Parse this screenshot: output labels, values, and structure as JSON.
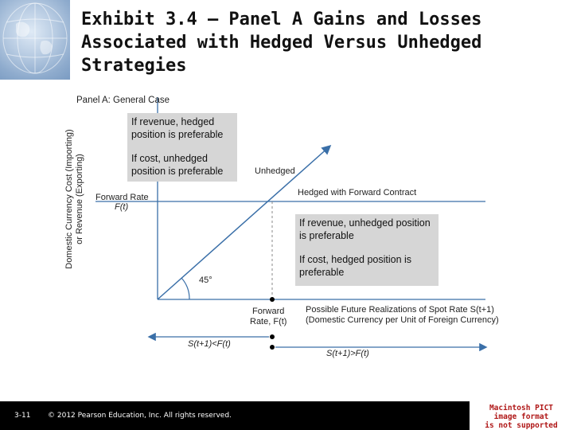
{
  "slide": {
    "title": "Exhibit 3.4 – Panel A  Gains and Losses\nAssociated with Hedged Versus Unhedged\nStrategies",
    "page_number": "3-11",
    "copyright": "© 2012 Pearson Education, Inc. All rights reserved.",
    "image_notice": "Macintosh PICT\nimage format\nis not supported"
  },
  "diagram": {
    "panel_title": "Panel A: General Case",
    "y_axis_label_line1": "Domestic Currency Cost (Importing)",
    "y_axis_label_line2": "or Revenue (Exporting)",
    "forward_rate_label": "Forward Rate",
    "forward_rate_symbol": "F(t)",
    "angle_label": "45°",
    "unhedged_label": "Unhedged",
    "hedged_label": "Hedged with Forward Contract",
    "x_forward_label_line1": "Forward",
    "x_forward_label_line2": "Rate, F(t)",
    "x_axis_label_line1": "Possible Future Realizations of Spot Rate S(t+1)",
    "x_axis_label_line2": "(Domestic Currency per Unit of Foreign Currency)",
    "left_arrow_label": "S(t+1)<F(t)",
    "right_arrow_label": "S(t+1)>F(t)",
    "callout_upper": {
      "line1": "If revenue, hedged position is preferable",
      "line2": "If cost, unhedged position is preferable"
    },
    "callout_lower": {
      "line1": "If revenue, unhedged position is preferable",
      "line2": "If cost, hedged position is preferable"
    }
  },
  "colors": {
    "line": "#3a6fa8",
    "callout_bg": "#d6d6d6",
    "footer_bg": "#000000",
    "notice_text": "#b01818"
  }
}
